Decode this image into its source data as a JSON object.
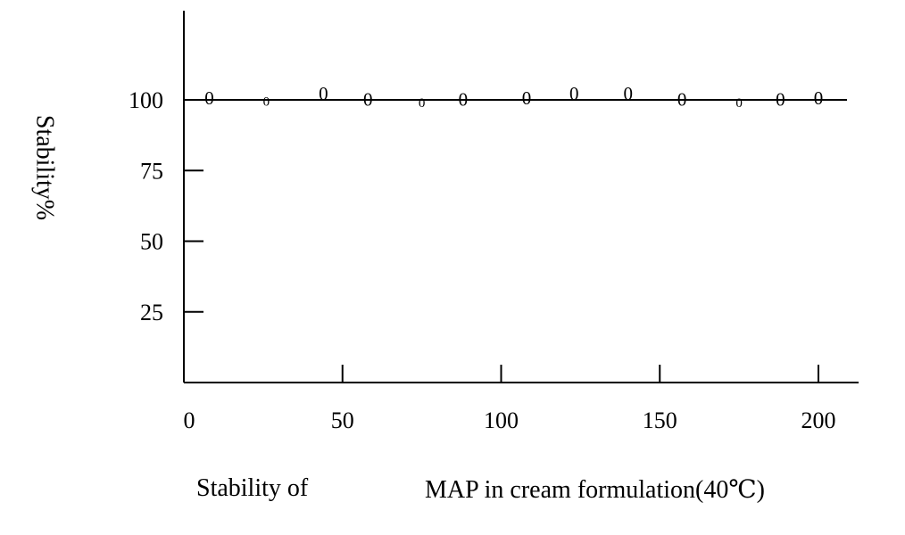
{
  "chart_data": {
    "type": "line",
    "ylabel": "Stability%",
    "xlabel": "",
    "caption_left": "Stability of",
    "caption_right": "MAP in cream formulation(40℃)",
    "marker_glyph": "0",
    "xlim": [
      0,
      210
    ],
    "ylim": [
      0,
      130
    ],
    "x_ticks": [
      0,
      50,
      100,
      150,
      200
    ],
    "y_ticks": [
      25,
      50,
      75,
      100
    ],
    "reference_line_y": 100,
    "grid": false,
    "legend": "none",
    "series": [
      {
        "x": [
          8,
          26,
          44,
          58,
          75,
          88,
          108,
          123,
          140,
          157,
          175,
          188,
          200
        ],
        "y": [
          100,
          99,
          101.5,
          99.5,
          98.5,
          99.5,
          100,
          101.5,
          101.5,
          99.5,
          98.5,
          99.5,
          100
        ]
      }
    ],
    "colors": {
      "axis": "#000000",
      "marker": "#000000"
    }
  }
}
